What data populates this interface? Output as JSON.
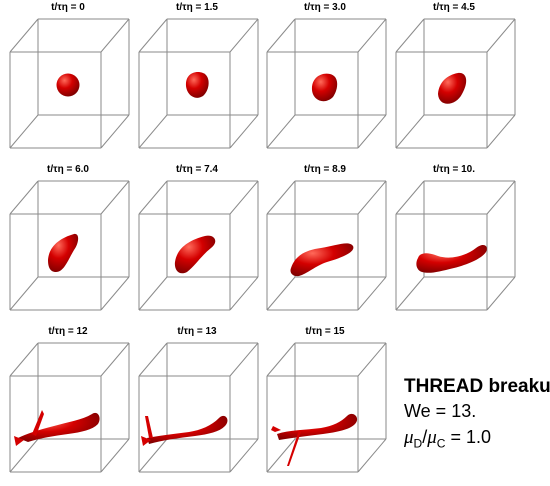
{
  "panels": [
    {
      "title": "t/τη = 0",
      "stage": 0
    },
    {
      "title": "t/τη = 1.5",
      "stage": 1
    },
    {
      "title": "t/τη = 3.0",
      "stage": 2
    },
    {
      "title": "t/τη = 4.5",
      "stage": 3
    },
    {
      "title": "t/τη = 6.0",
      "stage": 4
    },
    {
      "title": "t/τη = 7.4",
      "stage": 5
    },
    {
      "title": "t/τη = 8.9",
      "stage": 6
    },
    {
      "title": "t/τη = 10.",
      "stage": 7
    },
    {
      "title": "t/τη = 12",
      "stage": 8
    },
    {
      "title": "t/τη = 13",
      "stage": 9
    },
    {
      "title": "t/τη = 15",
      "stage": 10
    }
  ],
  "legend": {
    "title": "THREAD breakup",
    "weber": "We = 13.",
    "ratio_numerator": "μ",
    "ratio_num_sub": "D",
    "ratio_slash": "/",
    "ratio_denominator": "μ",
    "ratio_den_sub": "C",
    "ratio_value": "= 1.0"
  },
  "colors": {
    "droplet": "#d40000",
    "droplet_dark": "#7a0000",
    "droplet_light": "#ff6a5a",
    "cube_edges": "#8a8a8a"
  }
}
